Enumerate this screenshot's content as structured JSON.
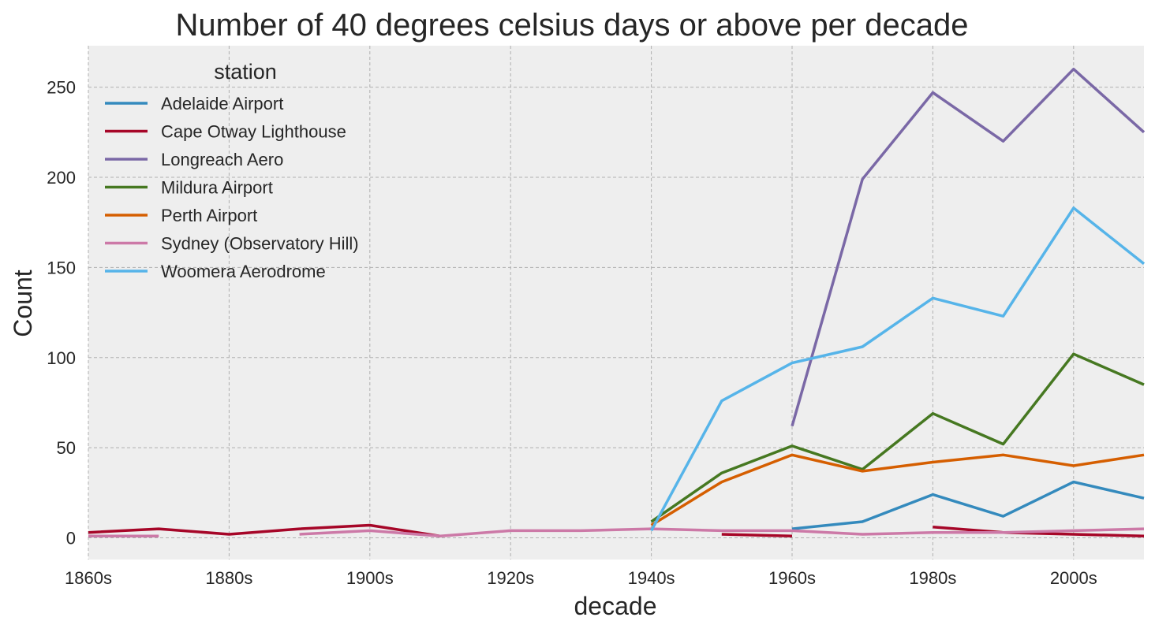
{
  "chart_data": {
    "type": "line",
    "title": "Number of 40 degrees celsius days or above per decade",
    "xlabel": "decade",
    "ylabel": "Count",
    "x": [
      "1860s",
      "1870s",
      "1880s",
      "1890s",
      "1900s",
      "1910s",
      "1920s",
      "1930s",
      "1940s",
      "1950s",
      "1960s",
      "1970s",
      "1980s",
      "1990s",
      "2000s",
      "2010s"
    ],
    "xtick_labels": [
      "1860s",
      "1880s",
      "1900s",
      "1920s",
      "1940s",
      "1960s",
      "1980s",
      "2000s"
    ],
    "yticks": [
      0,
      50,
      100,
      150,
      200,
      250
    ],
    "ylim": [
      -12,
      273
    ],
    "grid": true,
    "legend": {
      "title": "station",
      "placement": "top-left"
    },
    "series": [
      {
        "name": "Adelaide Airport",
        "color": "#348abd",
        "values": [
          null,
          null,
          null,
          null,
          null,
          null,
          null,
          null,
          null,
          null,
          5,
          9,
          24,
          12,
          31,
          22
        ]
      },
      {
        "name": "Cape Otway Lighthouse",
        "color": "#a60628",
        "values": [
          3,
          5,
          2,
          5,
          7,
          1,
          null,
          null,
          null,
          2,
          1,
          null,
          6,
          3,
          2,
          1
        ]
      },
      {
        "name": "Longreach Aero",
        "color": "#7a68a6",
        "values": [
          null,
          null,
          null,
          null,
          null,
          null,
          null,
          null,
          null,
          null,
          62,
          199,
          247,
          220,
          260,
          225
        ]
      },
      {
        "name": "Mildura Airport",
        "color": "#467821",
        "values": [
          null,
          null,
          null,
          null,
          null,
          null,
          null,
          null,
          9,
          36,
          51,
          38,
          69,
          52,
          102,
          85
        ]
      },
      {
        "name": "Perth Airport",
        "color": "#d55e00",
        "values": [
          null,
          null,
          null,
          null,
          null,
          null,
          null,
          null,
          7,
          31,
          46,
          37,
          42,
          46,
          40,
          46
        ]
      },
      {
        "name": "Sydney (Observatory Hill)",
        "color": "#cc79a7",
        "values": [
          1,
          1,
          null,
          2,
          4,
          1,
          4,
          4,
          5,
          4,
          4,
          2,
          3,
          3,
          4,
          5
        ]
      },
      {
        "name": "Woomera Aerodrome",
        "color": "#56b4e9",
        "values": [
          null,
          null,
          null,
          null,
          null,
          null,
          null,
          null,
          4,
          76,
          97,
          106,
          133,
          123,
          183,
          152
        ]
      }
    ]
  }
}
